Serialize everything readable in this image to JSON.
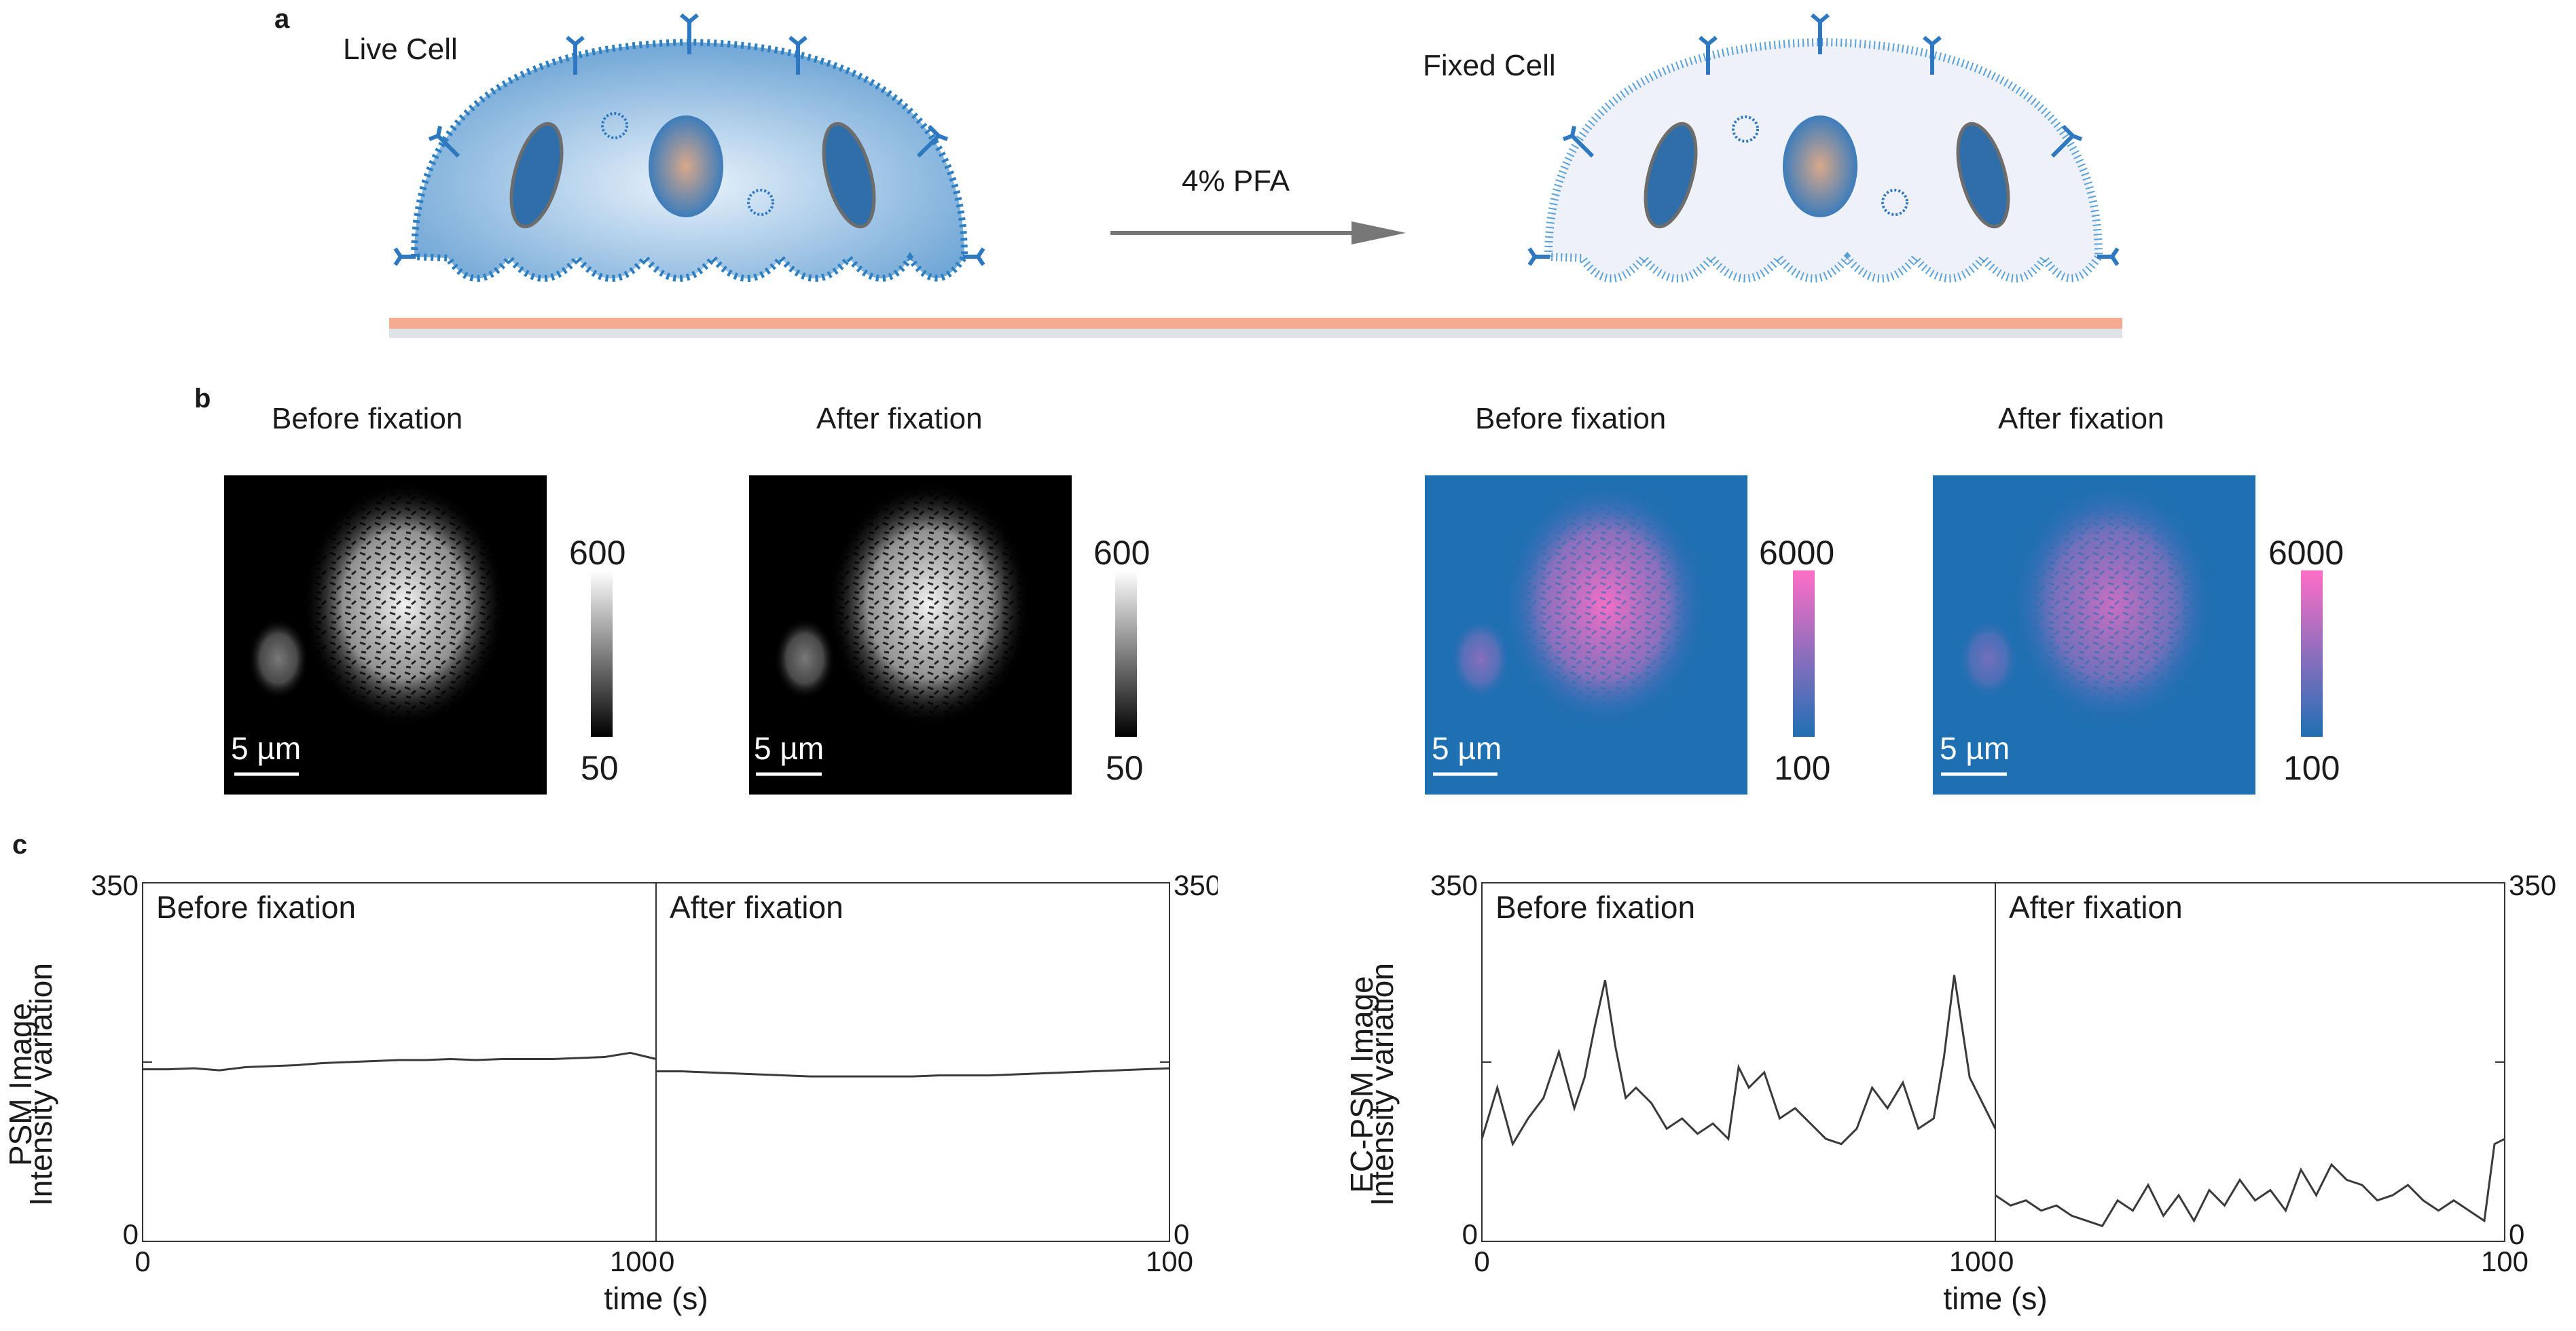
{
  "panel_a": {
    "letter": "a",
    "live_cell_label": "Live Cell",
    "fixed_cell_label": "Fixed Cell",
    "treatment_label": "4% PFA"
  },
  "panel_b": {
    "letter": "b",
    "psm": {
      "before_title": "Before fixation",
      "after_title": "After fixation",
      "colorbar_max": "600",
      "colorbar_min": "50",
      "scale_bar_label": "5 µm"
    },
    "ec_psm": {
      "before_title": "Before fixation",
      "after_title": "After fixation",
      "colorbar_max": "6000",
      "colorbar_min": "100",
      "scale_bar_label": "5 µm"
    },
    "colors": {
      "psm_low": "#000000",
      "psm_high": "#ffffff",
      "ec_low": "#1f6fb3",
      "ec_high": "#ff6ec7"
    }
  },
  "panel_c": {
    "letter": "c"
  },
  "chart_data": [
    {
      "type": "line",
      "name": "psm-intensity",
      "ylabel_line1": "PSM Image",
      "ylabel_line2": "Intensity variation",
      "xlabel": "time (s)",
      "ylim": [
        0,
        350
      ],
      "y_ticks": [
        "0",
        "350"
      ],
      "x_ticks": [
        "0",
        "100",
        "0",
        "100"
      ],
      "segments": [
        {
          "label": "Before fixation",
          "x": [
            0,
            5,
            10,
            15,
            20,
            25,
            30,
            35,
            40,
            45,
            50,
            55,
            60,
            65,
            70,
            75,
            80,
            85,
            90,
            95,
            100
          ],
          "y": [
            168,
            168,
            169,
            167,
            170,
            171,
            172,
            174,
            175,
            176,
            177,
            177,
            178,
            177,
            178,
            178,
            178,
            179,
            180,
            184,
            178
          ]
        },
        {
          "label": "After fixation",
          "x": [
            0,
            5,
            10,
            15,
            20,
            25,
            30,
            35,
            40,
            45,
            50,
            55,
            60,
            65,
            70,
            75,
            80,
            85,
            90,
            95,
            100
          ],
          "y": [
            166,
            166,
            165,
            164,
            163,
            162,
            161,
            161,
            161,
            161,
            161,
            162,
            162,
            162,
            163,
            164,
            165,
            166,
            167,
            168,
            169
          ]
        }
      ]
    },
    {
      "type": "line",
      "name": "ec-psm-intensity",
      "ylabel_line1": "EC-PSM Image",
      "ylabel_line2": "Intensity variation",
      "xlabel": "time (s)",
      "ylim": [
        0,
        350
      ],
      "y_ticks": [
        "0",
        "350"
      ],
      "x_ticks": [
        "0",
        "100",
        "0",
        "100"
      ],
      "segments": [
        {
          "label": "Before fixation",
          "x": [
            0,
            3,
            6,
            9,
            12,
            15,
            18,
            20,
            22,
            24,
            26,
            28,
            30,
            33,
            36,
            39,
            42,
            45,
            48,
            50,
            52,
            55,
            58,
            61,
            64,
            67,
            70,
            73,
            76,
            79,
            82,
            85,
            88,
            90,
            92,
            95,
            98,
            100
          ],
          "y": [
            100,
            150,
            95,
            120,
            140,
            185,
            130,
            160,
            210,
            255,
            190,
            140,
            150,
            135,
            110,
            120,
            105,
            115,
            100,
            170,
            150,
            165,
            120,
            130,
            115,
            100,
            95,
            110,
            150,
            130,
            155,
            110,
            120,
            180,
            260,
            160,
            130,
            110
          ]
        },
        {
          "label": "After fixation",
          "x": [
            0,
            3,
            6,
            9,
            12,
            15,
            18,
            21,
            24,
            27,
            30,
            33,
            36,
            39,
            42,
            45,
            48,
            51,
            54,
            57,
            60,
            63,
            66,
            69,
            72,
            75,
            78,
            81,
            84,
            87,
            90,
            93,
            96,
            98,
            100
          ],
          "y": [
            45,
            35,
            40,
            30,
            35,
            25,
            20,
            15,
            40,
            30,
            55,
            25,
            45,
            20,
            50,
            35,
            60,
            40,
            50,
            30,
            70,
            45,
            75,
            60,
            55,
            40,
            45,
            55,
            40,
            30,
            40,
            30,
            20,
            95,
            100
          ]
        }
      ]
    }
  ]
}
